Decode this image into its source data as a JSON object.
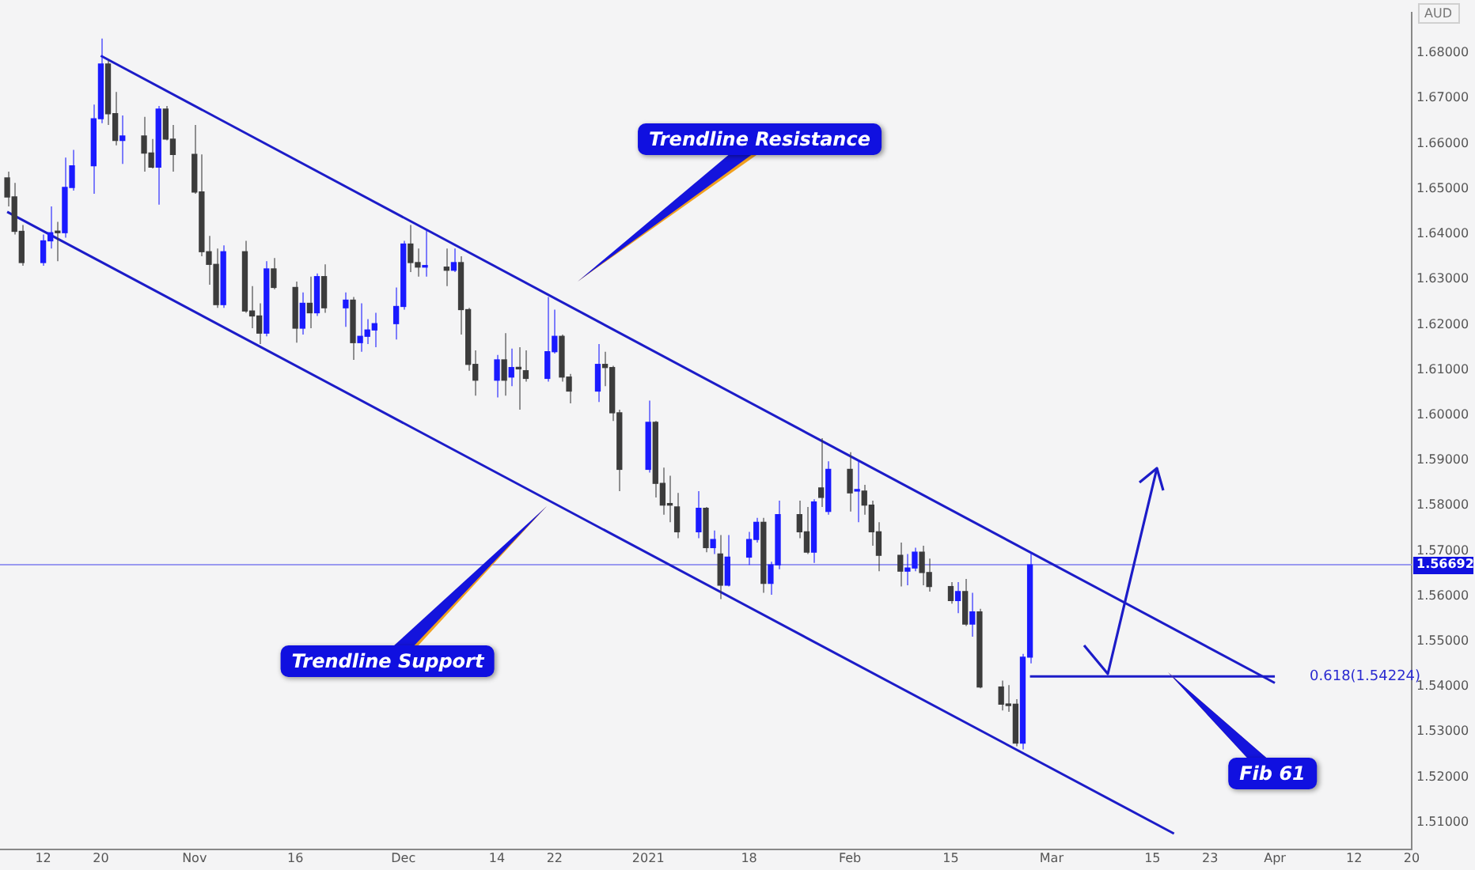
{
  "chart_data": {
    "type": "candlestick",
    "ylabel": "AUD",
    "x": [
      "2020-10-07",
      "2020-10-08",
      "2020-10-09",
      "2020-10-12",
      "2020-10-13",
      "2020-10-14",
      "2020-10-15",
      "2020-10-16",
      "2020-10-19",
      "2020-10-20",
      "2020-10-21",
      "2020-10-22",
      "2020-10-23",
      "2020-10-26",
      "2020-10-27",
      "2020-10-28",
      "2020-10-29",
      "2020-10-30",
      "2020-11-02",
      "2020-11-03",
      "2020-11-04",
      "2020-11-05",
      "2020-11-06",
      "2020-11-09",
      "2020-11-10",
      "2020-11-11",
      "2020-11-12",
      "2020-11-13",
      "2020-11-16",
      "2020-11-17",
      "2020-11-18",
      "2020-11-19",
      "2020-11-20",
      "2020-11-23",
      "2020-11-24",
      "2020-11-25",
      "2020-11-26",
      "2020-11-27",
      "2020-11-30",
      "2020-12-01",
      "2020-12-02",
      "2020-12-03",
      "2020-12-04",
      "2020-12-07",
      "2020-12-08",
      "2020-12-09",
      "2020-12-10",
      "2020-12-11",
      "2020-12-14",
      "2020-12-15",
      "2020-12-16",
      "2020-12-17",
      "2020-12-18",
      "2020-12-21",
      "2020-12-22",
      "2020-12-23",
      "2020-12-24",
      "2020-12-28",
      "2020-12-29",
      "2020-12-30",
      "2020-12-31",
      "2021-01-04",
      "2021-01-05",
      "2021-01-06",
      "2021-01-07",
      "2021-01-08",
      "2021-01-11",
      "2021-01-12",
      "2021-01-13",
      "2021-01-14",
      "2021-01-15",
      "2021-01-18",
      "2021-01-19",
      "2021-01-20",
      "2021-01-21",
      "2021-01-22",
      "2021-01-25",
      "2021-01-26",
      "2021-01-27",
      "2021-01-28",
      "2021-01-29",
      "2021-02-01",
      "2021-02-02",
      "2021-02-03",
      "2021-02-04",
      "2021-02-05",
      "2021-02-08",
      "2021-02-09",
      "2021-02-10",
      "2021-02-11",
      "2021-02-12",
      "2021-02-15",
      "2021-02-16",
      "2021-02-17",
      "2021-02-18",
      "2021-02-19",
      "2021-02-22",
      "2021-02-23",
      "2021-02-24",
      "2021-02-25",
      "2021-02-26"
    ],
    "ohlc": [
      [
        1.6524,
        1.6538,
        1.6461,
        1.6482
      ],
      [
        1.6482,
        1.6513,
        1.6399,
        1.6406
      ],
      [
        1.6406,
        1.642,
        1.633,
        1.6337
      ],
      [
        1.6337,
        1.6399,
        1.633,
        1.6385
      ],
      [
        1.6385,
        1.6461,
        1.6368,
        1.6403
      ],
      [
        1.6403,
        1.6427,
        1.634,
        1.6403
      ],
      [
        1.6403,
        1.6569,
        1.6392,
        1.6503
      ],
      [
        1.6503,
        1.6586,
        1.6496,
        1.6551
      ],
      [
        1.6551,
        1.6686,
        1.6489,
        1.6655
      ],
      [
        1.6655,
        1.6832,
        1.6645,
        1.6776
      ],
      [
        1.6776,
        1.6783,
        1.6641,
        1.6666
      ],
      [
        1.6666,
        1.6714,
        1.6596,
        1.6607
      ],
      [
        1.6607,
        1.6662,
        1.6555,
        1.6617
      ],
      [
        1.6617,
        1.6659,
        1.6538,
        1.6579
      ],
      [
        1.6579,
        1.661,
        1.6545,
        1.6548
      ],
      [
        1.6548,
        1.6683,
        1.6465,
        1.6676
      ],
      [
        1.6676,
        1.6683,
        1.6607,
        1.661
      ],
      [
        1.661,
        1.6641,
        1.6538,
        1.6576
      ],
      [
        1.6576,
        1.6641,
        1.6489,
        1.6493
      ],
      [
        1.6493,
        1.6576,
        1.6351,
        1.6361
      ],
      [
        1.6361,
        1.6396,
        1.6288,
        1.6333
      ],
      [
        1.6333,
        1.6368,
        1.6237,
        1.6244
      ],
      [
        1.6244,
        1.6375,
        1.6237,
        1.6361
      ],
      [
        1.6361,
        1.6385,
        1.6226,
        1.623
      ],
      [
        1.623,
        1.6285,
        1.6192,
        1.6219
      ],
      [
        1.6219,
        1.6247,
        1.6157,
        1.6181
      ],
      [
        1.6181,
        1.634,
        1.6174,
        1.6323
      ],
      [
        1.6323,
        1.6347,
        1.6278,
        1.6282
      ],
      [
        1.6282,
        1.6295,
        1.616,
        1.6192
      ],
      [
        1.6192,
        1.6271,
        1.6178,
        1.6247
      ],
      [
        1.6247,
        1.6306,
        1.6192,
        1.6226
      ],
      [
        1.6226,
        1.6313,
        1.6219,
        1.6306
      ],
      [
        1.6306,
        1.6333,
        1.6226,
        1.6237
      ],
      [
        1.6237,
        1.6271,
        1.6195,
        1.6254
      ],
      [
        1.6254,
        1.6261,
        1.6122,
        1.616
      ],
      [
        1.616,
        1.6247,
        1.614,
        1.6174
      ],
      [
        1.6174,
        1.6212,
        1.6157,
        1.6188
      ],
      [
        1.6188,
        1.6226,
        1.615,
        1.6202
      ],
      [
        1.6202,
        1.6282,
        1.6167,
        1.624
      ],
      [
        1.624,
        1.6385,
        1.6233,
        1.6378
      ],
      [
        1.6378,
        1.642,
        1.6316,
        1.6337
      ],
      [
        1.6337,
        1.6368,
        1.6306,
        1.6327
      ],
      [
        1.6327,
        1.641,
        1.6306,
        1.6327
      ],
      [
        1.6327,
        1.6368,
        1.6285,
        1.632
      ],
      [
        1.632,
        1.6368,
        1.6316,
        1.6337
      ],
      [
        1.6337,
        1.6351,
        1.6178,
        1.6233
      ],
      [
        1.6233,
        1.6237,
        1.6098,
        1.6112
      ],
      [
        1.6112,
        1.6143,
        1.6043,
        1.6077
      ],
      [
        1.6077,
        1.6133,
        1.6039,
        1.6122
      ],
      [
        1.6122,
        1.6181,
        1.6043,
        1.6077
      ],
      [
        1.6084,
        1.6147,
        1.6064,
        1.6105
      ],
      [
        1.6102,
        1.615,
        1.6012,
        1.6102
      ],
      [
        1.6098,
        1.6143,
        1.6074,
        1.6081
      ],
      [
        1.6081,
        1.6261,
        1.6074,
        1.614
      ],
      [
        1.614,
        1.6233,
        1.6136,
        1.6174
      ],
      [
        1.6174,
        1.6178,
        1.6074,
        1.6084
      ],
      [
        1.6084,
        1.6091,
        1.6026,
        1.6053
      ],
      [
        1.6053,
        1.6157,
        1.6029,
        1.6112
      ],
      [
        1.6112,
        1.614,
        1.6064,
        1.6105
      ],
      [
        1.6105,
        1.6109,
        1.5987,
        1.6005
      ],
      [
        1.6005,
        1.6012,
        1.5832,
        1.588
      ],
      [
        1.588,
        1.6032,
        1.5873,
        1.5984
      ],
      [
        1.5984,
        1.5987,
        1.5818,
        1.5849
      ],
      [
        1.5849,
        1.5884,
        1.578,
        1.5801
      ],
      [
        1.5801,
        1.5866,
        1.5763,
        1.5801
      ],
      [
        1.5797,
        1.5828,
        1.5728,
        1.5742
      ],
      [
        1.5742,
        1.5832,
        1.5728,
        1.5794
      ],
      [
        1.5794,
        1.5797,
        1.5697,
        1.5707
      ],
      [
        1.5707,
        1.5745,
        1.5693,
        1.5725
      ],
      [
        1.5693,
        1.5735,
        1.5593,
        1.5624
      ],
      [
        1.5624,
        1.5735,
        1.5621,
        1.5686
      ],
      [
        1.5686,
        1.5742,
        1.5669,
        1.5725
      ],
      [
        1.5725,
        1.5773,
        1.5718,
        1.5763
      ],
      [
        1.5763,
        1.5773,
        1.5607,
        1.5628
      ],
      [
        1.5628,
        1.5676,
        1.5603,
        1.5669
      ],
      [
        1.5669,
        1.5811,
        1.5659,
        1.578
      ],
      [
        1.578,
        1.5811,
        1.5728,
        1.5742
      ],
      [
        1.5742,
        1.5797,
        1.5693,
        1.5697
      ],
      [
        1.5697,
        1.5814,
        1.5673,
        1.5808
      ],
      [
        1.5839,
        1.5949,
        1.5797,
        1.5818
      ],
      [
        1.5787,
        1.5898,
        1.578,
        1.588
      ],
      [
        1.588,
        1.5918,
        1.5787,
        1.5828
      ],
      [
        1.5832,
        1.5901,
        1.5763,
        1.5835
      ],
      [
        1.5832,
        1.5846,
        1.578,
        1.5801
      ],
      [
        1.5801,
        1.5811,
        1.5711,
        1.5742
      ],
      [
        1.5742,
        1.5763,
        1.5655,
        1.569
      ],
      [
        1.569,
        1.5718,
        1.5621,
        1.5655
      ],
      [
        1.5655,
        1.5693,
        1.5624,
        1.5662
      ],
      [
        1.5662,
        1.5707,
        1.5655,
        1.5697
      ],
      [
        1.5697,
        1.5711,
        1.5624,
        1.5652
      ],
      [
        1.5652,
        1.5683,
        1.561,
        1.5621
      ],
      [
        1.5621,
        1.5631,
        1.5583,
        1.559
      ],
      [
        1.559,
        1.5631,
        1.5562,
        1.561
      ],
      [
        1.561,
        1.5638,
        1.5534,
        1.5538
      ],
      [
        1.5538,
        1.5607,
        1.551,
        1.5565
      ],
      [
        1.5565,
        1.5572,
        1.5396,
        1.5399
      ],
      [
        1.5399,
        1.5413,
        1.5347,
        1.5361
      ],
      [
        1.5361,
        1.5403,
        1.5344,
        1.5358
      ],
      [
        1.5361,
        1.5372,
        1.5268,
        1.5275
      ],
      [
        1.5275,
        1.5472,
        1.5261,
        1.5465
      ],
      [
        1.5465,
        1.5697,
        1.5451,
        1.5669
      ]
    ],
    "colors": [
      "#3c3c3c",
      "#3c3c3c",
      "#3c3c3c",
      "#1a1aff",
      "#1a1aff",
      "#3c3c3c",
      "#1a1aff",
      "#1a1aff",
      "#1a1aff",
      "#1a1aff",
      "#3c3c3c",
      "#3c3c3c",
      "#1a1aff",
      "#3c3c3c",
      "#3c3c3c",
      "#1a1aff",
      "#3c3c3c",
      "#3c3c3c",
      "#3c3c3c",
      "#3c3c3c",
      "#3c3c3c",
      "#3c3c3c",
      "#1a1aff",
      "#3c3c3c",
      "#3c3c3c",
      "#3c3c3c",
      "#1a1aff",
      "#3c3c3c",
      "#3c3c3c",
      "#1a1aff",
      "#3c3c3c",
      "#1a1aff",
      "#3c3c3c",
      "#1a1aff",
      "#3c3c3c",
      "#1a1aff",
      "#1a1aff",
      "#1a1aff",
      "#1a1aff",
      "#1a1aff",
      "#3c3c3c",
      "#3c3c3c",
      "#1a1aff",
      "#3c3c3c",
      "#1a1aff",
      "#3c3c3c",
      "#3c3c3c",
      "#3c3c3c",
      "#1a1aff",
      "#3c3c3c",
      "#1a1aff",
      "#3c3c3c",
      "#3c3c3c",
      "#1a1aff",
      "#1a1aff",
      "#3c3c3c",
      "#3c3c3c",
      "#1a1aff",
      "#3c3c3c",
      "#3c3c3c",
      "#3c3c3c",
      "#1a1aff",
      "#3c3c3c",
      "#3c3c3c",
      "#3c3c3c",
      "#3c3c3c",
      "#1a1aff",
      "#3c3c3c",
      "#1a1aff",
      "#3c3c3c",
      "#1a1aff",
      "#1a1aff",
      "#1a1aff",
      "#3c3c3c",
      "#1a1aff",
      "#1a1aff",
      "#3c3c3c",
      "#3c3c3c",
      "#1a1aff",
      "#3c3c3c",
      "#1a1aff",
      "#3c3c3c",
      "#1a1aff",
      "#3c3c3c",
      "#3c3c3c",
      "#3c3c3c",
      "#3c3c3c",
      "#1a1aff",
      "#1a1aff",
      "#3c3c3c",
      "#3c3c3c",
      "#3c3c3c",
      "#1a1aff",
      "#3c3c3c",
      "#1a1aff",
      "#3c3c3c",
      "#3c3c3c",
      "#3c3c3c",
      "#3c3c3c",
      "#1a1aff",
      "#1a1aff"
    ],
    "series": [
      {
        "type": "line",
        "color": "#1c1cc8",
        "x": [
          "2020-10-20",
          "2021-04-01"
        ],
        "values": [
          1.6794,
          1.5408
        ]
      },
      {
        "type": "line",
        "color": "#1c1cc8",
        "x": [
          "2020-10-07",
          "2021-03-18"
        ],
        "values": [
          1.6449,
          1.5075
        ]
      },
      {
        "type": "line",
        "color": "#1c1cc8",
        "x": [
          "2021-02-26",
          "2021-04-01"
        ],
        "values": [
          1.54224,
          1.54224
        ]
      }
    ],
    "xlim": [
      "2020-10-06",
      "2021-04-20"
    ],
    "xticks": [
      {
        "value": "2020-10-12",
        "label": "12"
      },
      {
        "value": "2020-10-20",
        "label": "20"
      },
      {
        "value": "2020-11-02",
        "label": "Nov"
      },
      {
        "value": "2020-11-16",
        "label": "16"
      },
      {
        "value": "2020-12-01",
        "label": "Dec"
      },
      {
        "value": "2020-12-14",
        "label": "14"
      },
      {
        "value": "2020-12-22",
        "label": "22"
      },
      {
        "value": "2021-01-04",
        "label": "2021"
      },
      {
        "value": "2021-01-18",
        "label": "18"
      },
      {
        "value": "2021-02-01",
        "label": "Feb"
      },
      {
        "value": "2021-02-15",
        "label": "15"
      },
      {
        "value": "2021-03-01",
        "label": "Mar"
      },
      {
        "value": "2021-03-15",
        "label": "15"
      },
      {
        "value": "2021-03-23",
        "label": "23"
      },
      {
        "value": "2021-04-01",
        "label": "Apr"
      },
      {
        "value": "2021-04-12",
        "label": "12"
      },
      {
        "value": "2021-04-20",
        "label": "20"
      }
    ],
    "ylim": [
      1.504,
      1.689
    ],
    "yticks": [
      {
        "value": 1.51,
        "label": "1.51000"
      },
      {
        "value": 1.52,
        "label": "1.52000"
      },
      {
        "value": 1.53,
        "label": "1.53000"
      },
      {
        "value": 1.54,
        "label": "1.54000"
      },
      {
        "value": 1.55,
        "label": "1.55000"
      },
      {
        "value": 1.56,
        "label": "1.56000"
      },
      {
        "value": 1.57,
        "label": "1.57000"
      },
      {
        "value": 1.58,
        "label": "1.58000"
      },
      {
        "value": 1.59,
        "label": "1.59000"
      },
      {
        "value": 1.6,
        "label": "1.60000"
      },
      {
        "value": 1.61,
        "label": "1.61000"
      },
      {
        "value": 1.62,
        "label": "1.62000"
      },
      {
        "value": 1.63,
        "label": "1.63000"
      },
      {
        "value": 1.64,
        "label": "1.64000"
      },
      {
        "value": 1.65,
        "label": "1.65000"
      },
      {
        "value": 1.66,
        "label": "1.66000"
      },
      {
        "value": 1.67,
        "label": "1.67000"
      },
      {
        "value": 1.68,
        "label": "1.68000"
      }
    ],
    "ref_lines": [
      {
        "axis": "y",
        "value": 1.56692,
        "label": "1.56692",
        "color": "#9a9af0"
      }
    ],
    "annotations": [
      "Trendline Resistance",
      "Trendline Support",
      "Fib 61",
      {
        "text": "0.618(1.54224)",
        "x": "2021-04-01",
        "y": 1.54224
      }
    ],
    "grid": false,
    "legend": false
  }
}
